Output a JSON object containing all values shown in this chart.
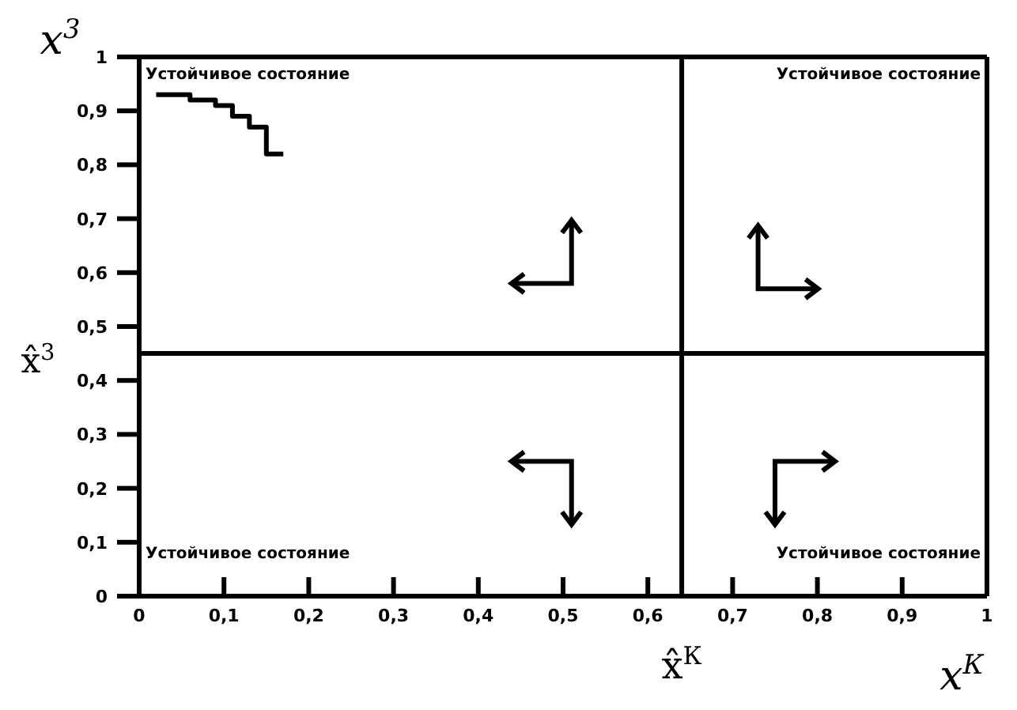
{
  "chart_data": {
    "type": "line",
    "xlabel": "x$^{К}$",
    "ylabel": "x$^{3}$",
    "x": [
      0.17,
      0.15,
      0.15,
      0.13,
      0.13,
      0.11,
      0.11,
      0.09,
      0.09,
      0.06,
      0.06,
      0.02
    ],
    "series": [
      {
        "color": "#000000",
        "values": [
          0.82,
          0.82,
          0.87,
          0.87,
          0.89,
          0.89,
          0.91,
          0.91,
          0.92,
          0.92,
          0.93,
          0.93
        ]
      }
    ],
    "xlim": [
      0,
      1
    ],
    "ylim": [
      0,
      1
    ],
    "xticks": [
      0,
      {
        "value": 0.1,
        "label": "0,1"
      },
      {
        "value": 0.2,
        "label": "0,2"
      },
      {
        "value": 0.3,
        "label": "0,3"
      },
      {
        "value": 0.4,
        "label": "0,4"
      },
      {
        "value": 0.5,
        "label": "0,5"
      },
      {
        "value": 0.6,
        "label": "0,6"
      },
      {
        "value": 0.7,
        "label": "0,7"
      },
      {
        "value": 0.8,
        "label": "0,8"
      },
      {
        "value": 0.9,
        "label": "0,9"
      },
      1
    ],
    "yticks": [
      0,
      {
        "value": 0.1,
        "label": "0,1"
      },
      {
        "value": 0.2,
        "label": "0,2"
      },
      {
        "value": 0.3,
        "label": "0,3"
      },
      {
        "value": 0.4,
        "label": "0,4"
      },
      {
        "value": 0.5,
        "label": "0,5"
      },
      {
        "value": 0.6,
        "label": "0,6"
      },
      {
        "value": 0.7,
        "label": "0,7"
      },
      {
        "value": 0.8,
        "label": "0,8"
      },
      {
        "value": 0.9,
        "label": "0,9"
      },
      1
    ],
    "ref_lines": [
      {
        "axis": "x",
        "value": 0.64,
        "label": "x̂$^{К}$",
        "color": "#000000"
      },
      {
        "axis": "y",
        "value": 0.45,
        "label": "x̂$^{3}$",
        "color": "#000000"
      }
    ],
    "annotations": [
      "Устойчивое состояние",
      "Устойчивое состояние",
      "Устойчивое состояние",
      "Устойчивое состояние"
    ]
  }
}
